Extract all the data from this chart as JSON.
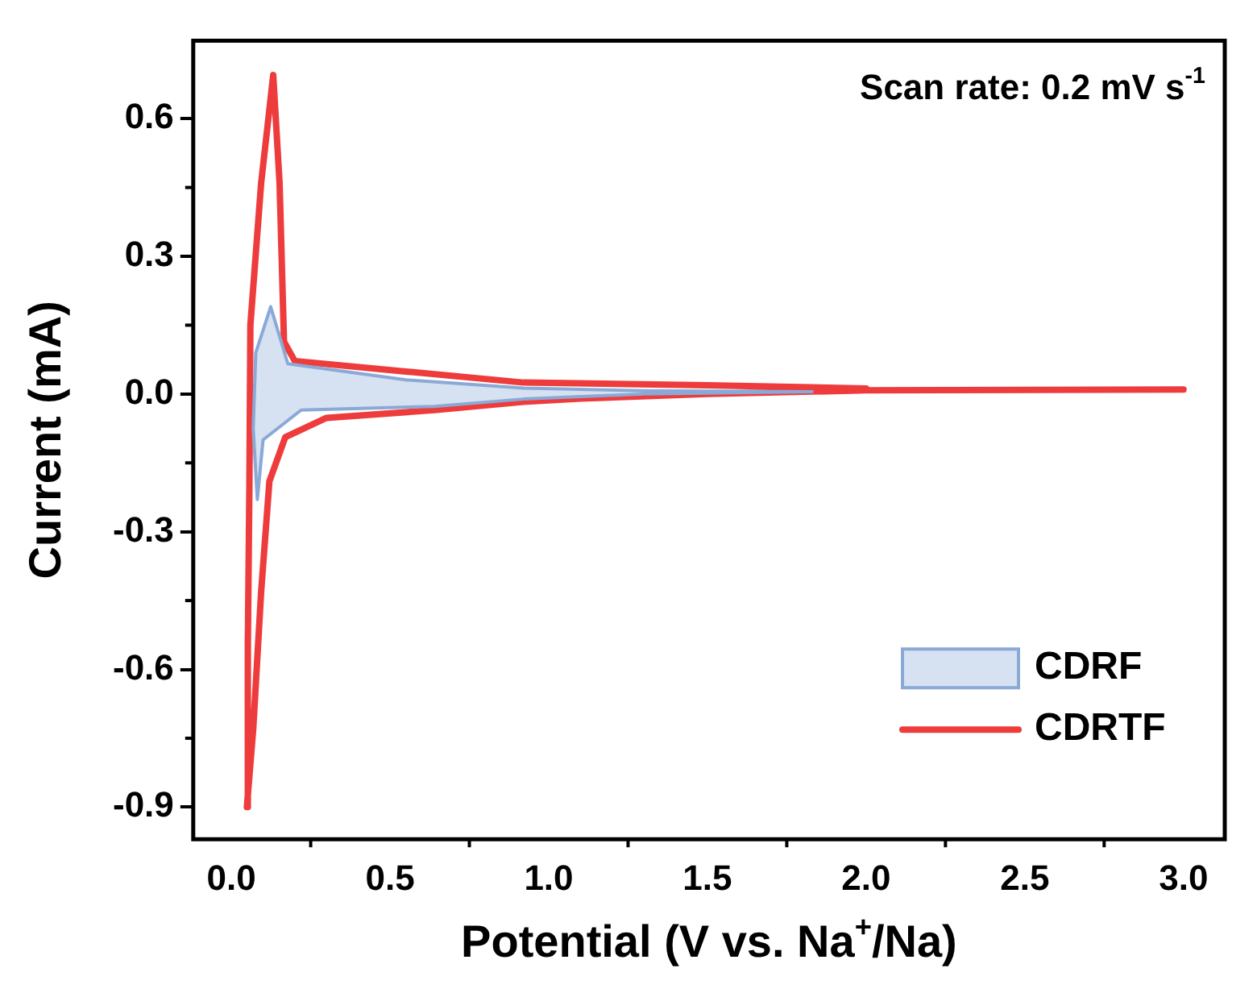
{
  "chart_data": {
    "type": "line",
    "xlabel": "Potential (V vs. Na$^{+}$/Na)",
    "ylabel": "Current (mA)",
    "annotations": [
      "Scan rate: 0.2 mV s$^{-1}$"
    ],
    "xlim": [
      -0.12,
      3.13
    ],
    "xticks": [
      {
        "value": 0,
        "label": "0.0"
      },
      0.5,
      {
        "value": 1,
        "label": "1.0"
      },
      1.5,
      {
        "value": 2,
        "label": "2.0"
      },
      2.5,
      {
        "value": 3,
        "label": "3.0"
      }
    ],
    "ylim": [
      -0.97,
      0.77
    ],
    "yticks": [
      -0.9,
      -0.6,
      -0.3,
      {
        "value": 0,
        "label": "0.0"
      },
      0.3,
      0.6
    ],
    "grid": false,
    "legend": "bottom right",
    "marker": "none",
    "line_style": "solid",
    "series": [
      {
        "name": "CDRF",
        "type": "area",
        "color": "#8aa9d6",
        "x": [
          0.124,
          0.178,
          0.55,
          0.92,
          1.3,
          1.83,
          1.3,
          0.92,
          0.64,
          0.22,
          0.1,
          0.082,
          0.069,
          0.077,
          0.124
        ],
        "values": [
          0.19,
          0.066,
          0.031,
          0.013,
          0.007,
          0.005,
          0.0,
          -0.011,
          -0.027,
          -0.035,
          -0.1,
          -0.23,
          -0.076,
          0.09,
          0.19
        ]
      },
      {
        "name": "CDRTF",
        "type": "line",
        "color": "#ee3b3b",
        "x": [
          3.0,
          2.0,
          1.5,
          1.1,
          0.92,
          0.64,
          0.3,
          0.17,
          0.12,
          0.094,
          0.069,
          0.049,
          0.052,
          0.057,
          0.06,
          0.094,
          0.132,
          0.152,
          0.166,
          0.2,
          0.55,
          0.92,
          1.5,
          2.0
        ],
        "values": [
          0.01,
          0.008,
          0.0,
          -0.01,
          -0.017,
          -0.035,
          -0.052,
          -0.094,
          -0.19,
          -0.43,
          -0.73,
          -0.9,
          -0.55,
          -0.195,
          0.15,
          0.46,
          0.695,
          0.46,
          0.114,
          0.072,
          0.049,
          0.025,
          0.019,
          0.012
        ]
      }
    ]
  }
}
